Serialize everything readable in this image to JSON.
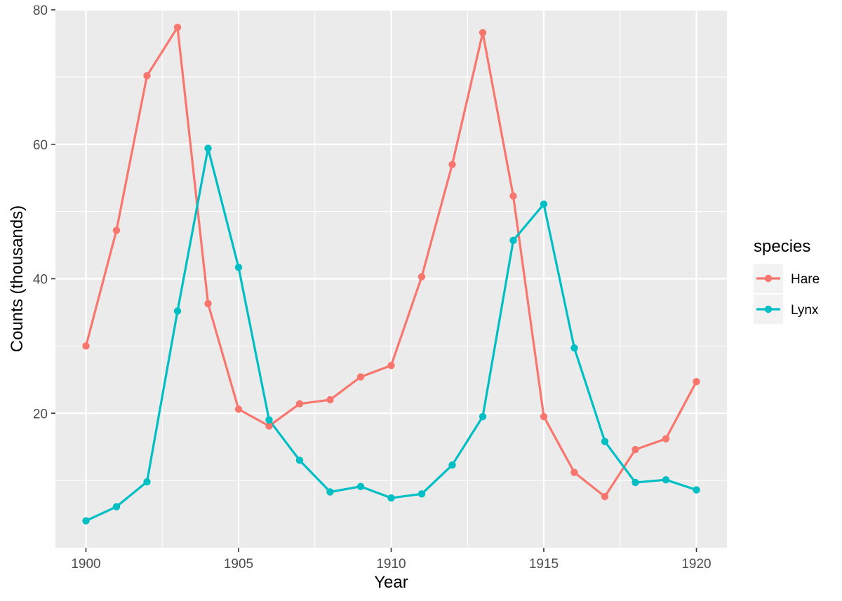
{
  "chart_data": {
    "type": "line",
    "title": "",
    "xlabel": "Year",
    "ylabel": "Counts (thousands)",
    "xlim": [
      1899,
      1921
    ],
    "ylim": [
      0,
      80
    ],
    "x_ticks": [
      1900,
      1905,
      1910,
      1915,
      1920
    ],
    "y_ticks": [
      20,
      40,
      60,
      80
    ],
    "grid": true,
    "legend": {
      "title": "species",
      "position": "right"
    },
    "x": [
      1900,
      1901,
      1902,
      1903,
      1904,
      1905,
      1906,
      1907,
      1908,
      1909,
      1910,
      1911,
      1912,
      1913,
      1914,
      1915,
      1916,
      1917,
      1918,
      1919,
      1920
    ],
    "series": [
      {
        "name": "Hare",
        "color": "#F8766D",
        "values": [
          30.0,
          47.2,
          70.2,
          77.4,
          36.3,
          20.6,
          18.1,
          21.4,
          22.0,
          25.4,
          27.1,
          40.3,
          57.0,
          76.6,
          52.3,
          19.5,
          11.2,
          7.6,
          14.6,
          16.2,
          24.7
        ]
      },
      {
        "name": "Lynx",
        "color": "#00BFC4",
        "values": [
          4.0,
          6.1,
          9.8,
          35.2,
          59.4,
          41.7,
          19.0,
          13.0,
          8.3,
          9.1,
          7.4,
          8.0,
          12.3,
          19.5,
          45.7,
          51.1,
          29.7,
          15.8,
          9.7,
          10.1,
          8.6
        ]
      }
    ]
  }
}
